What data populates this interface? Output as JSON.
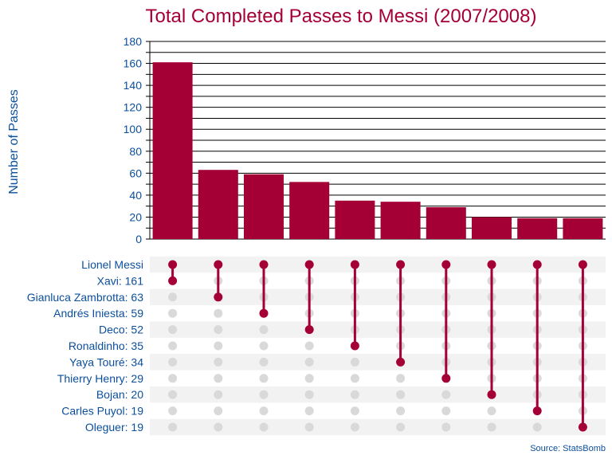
{
  "chart_data": {
    "type": "bar",
    "title": "Total Completed Passes to Messi (2007/2008)",
    "ylabel": "Number of Passes",
    "ylim": [
      0,
      180
    ],
    "yticks": [
      "0",
      "20",
      "40",
      "60",
      "80",
      "100",
      "120",
      "140",
      "160",
      "180"
    ],
    "grid": "horizontal",
    "receiver": "Lionel Messi",
    "categories": [
      "Xavi",
      "Gianluca Zambrotta",
      "Andrés Iniesta",
      "Deco",
      "Ronaldinho",
      "Yaya Touré",
      "Thierry Henry",
      "Bojan",
      "Carles Puyol",
      "Oleguer"
    ],
    "values": [
      161,
      63,
      59,
      52,
      35,
      34,
      29,
      20,
      19,
      19
    ],
    "row_labels": [
      "Lionel Messi",
      "Xavi: 161",
      "Gianluca Zambrotta: 63",
      "Andrés Iniesta: 59",
      "Deco: 52",
      "Ronaldinho: 35",
      "Yaya Touré: 34",
      "Thierry Henry: 29",
      "Bojan: 20",
      "Carles Puyol: 19",
      "Oleguer: 19"
    ],
    "source": "Source: StatsBomb",
    "colors": {
      "bar": "#a50036",
      "active_dot": "#a50036",
      "inactive_dot": "#d9d9d9",
      "text": "#0b4f9c",
      "row_stripe": "#f2f2f2"
    }
  }
}
